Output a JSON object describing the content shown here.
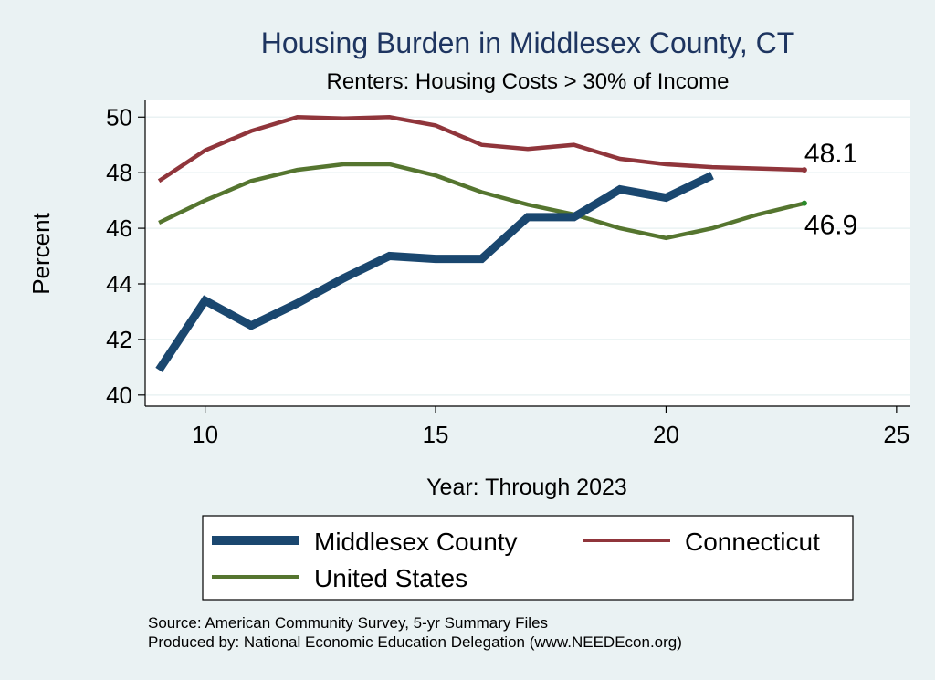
{
  "chart_data": {
    "type": "line",
    "title": "Housing Burden in Middlesex County, CT",
    "subtitle": "Renters: Housing Costs > 30% of Income",
    "xlabel": "Year: Through 2023",
    "ylabel": "Percent",
    "xlim": [
      8.7,
      25.3
    ],
    "ylim": [
      39.6,
      50.6
    ],
    "xticks": [
      10,
      15,
      20,
      25
    ],
    "yticks": [
      40,
      42,
      44,
      46,
      48,
      50
    ],
    "grid": true,
    "legend_position": "bottom",
    "series": [
      {
        "name": "Middlesex County",
        "color": "#1a476f",
        "x": [
          9,
          10,
          11,
          12,
          13,
          14,
          15,
          16,
          17,
          18,
          19,
          20,
          21
        ],
        "y": [
          40.9,
          43.4,
          42.5,
          43.3,
          44.2,
          45.0,
          44.9,
          44.9,
          46.4,
          46.4,
          47.4,
          47.1,
          47.9
        ]
      },
      {
        "name": "Connecticut",
        "color": "#90353b",
        "x": [
          9,
          10,
          11,
          12,
          13,
          14,
          15,
          16,
          17,
          18,
          19,
          20,
          21,
          22,
          23
        ],
        "y": [
          47.7,
          48.8,
          49.5,
          50.0,
          49.95,
          50.0,
          49.7,
          49.0,
          48.85,
          49.0,
          48.5,
          48.3,
          48.2,
          48.15,
          48.1
        ]
      },
      {
        "name": "United States",
        "color": "#55752f",
        "x": [
          9,
          10,
          11,
          12,
          13,
          14,
          15,
          16,
          17,
          18,
          19,
          20,
          21,
          22,
          23
        ],
        "y": [
          46.2,
          47.0,
          47.7,
          48.1,
          48.3,
          48.3,
          47.9,
          47.3,
          46.85,
          46.5,
          46.0,
          45.65,
          46.0,
          46.5,
          46.9
        ]
      }
    ],
    "annotations": [
      {
        "label": "48.1",
        "x": 23,
        "y": 48.1,
        "series": "Connecticut",
        "placement": "above"
      },
      {
        "label": "46.9",
        "x": 23,
        "y": 46.9,
        "series": "United States",
        "placement": "below"
      }
    ],
    "notes": [
      "Source: American Community Survey, 5-yr Summary Files",
      "Produced by: National Economic Education Delegation (www.NEEDEcon.org)"
    ]
  }
}
